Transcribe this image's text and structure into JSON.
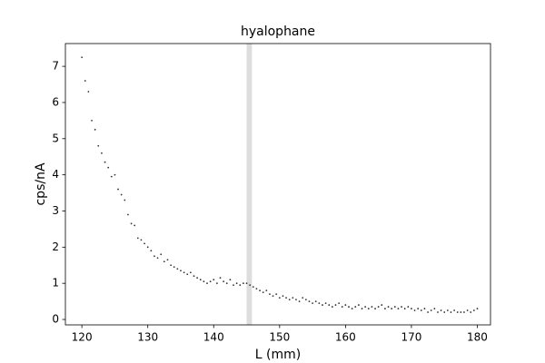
{
  "chart_data": {
    "type": "scatter",
    "title": "hyalophane",
    "x_label": "L (mm)",
    "y_label": "cps/nA",
    "x": [
      120,
      120.5,
      121,
      121.5,
      122,
      122.5,
      123,
      123.5,
      124,
      124.5,
      125,
      125.5,
      126,
      126.5,
      127,
      127.5,
      128,
      128.5,
      129,
      129.5,
      130,
      130.5,
      131,
      131.5,
      132,
      132.5,
      133,
      133.5,
      134,
      134.5,
      135,
      135.5,
      136,
      136.5,
      137,
      137.5,
      138,
      138.5,
      139,
      139.5,
      140,
      140.5,
      141,
      141.5,
      142,
      142.5,
      143,
      143.5,
      144,
      144.5,
      145,
      145.5,
      146,
      146.5,
      147,
      147.5,
      148,
      148.5,
      149,
      149.5,
      150,
      150.5,
      151,
      151.5,
      152,
      152.5,
      153,
      153.5,
      154,
      154.5,
      155,
      155.5,
      156,
      156.5,
      157,
      157.5,
      158,
      158.5,
      159,
      159.5,
      160,
      160.5,
      161,
      161.5,
      162,
      162.5,
      163,
      163.5,
      164,
      164.5,
      165,
      165.5,
      166,
      166.5,
      167,
      167.5,
      168,
      168.5,
      169,
      169.5,
      170,
      170.5,
      171,
      171.5,
      172,
      172.5,
      173,
      173.5,
      174,
      174.5,
      175,
      175.5,
      176,
      176.5,
      177,
      177.5,
      178,
      178.5,
      179,
      179.5,
      180
    ],
    "values": [
      7.25,
      6.6,
      6.3,
      5.5,
      5.25,
      4.8,
      4.6,
      4.35,
      4.2,
      3.95,
      4.0,
      3.6,
      3.45,
      3.3,
      2.9,
      2.65,
      2.6,
      2.25,
      2.2,
      2.1,
      2.0,
      1.9,
      1.75,
      1.7,
      1.8,
      1.6,
      1.65,
      1.5,
      1.45,
      1.4,
      1.35,
      1.3,
      1.25,
      1.3,
      1.2,
      1.15,
      1.1,
      1.05,
      1.0,
      1.05,
      1.1,
      1.0,
      1.15,
      1.05,
      1.0,
      1.1,
      0.95,
      1.0,
      0.95,
      1.0,
      1.0,
      0.95,
      0.9,
      0.85,
      0.8,
      0.75,
      0.8,
      0.7,
      0.65,
      0.7,
      0.6,
      0.65,
      0.6,
      0.55,
      0.6,
      0.55,
      0.5,
      0.6,
      0.55,
      0.5,
      0.45,
      0.5,
      0.45,
      0.4,
      0.45,
      0.4,
      0.35,
      0.4,
      0.45,
      0.35,
      0.4,
      0.35,
      0.3,
      0.35,
      0.4,
      0.3,
      0.35,
      0.3,
      0.35,
      0.3,
      0.35,
      0.4,
      0.3,
      0.35,
      0.3,
      0.35,
      0.3,
      0.35,
      0.3,
      0.35,
      0.3,
      0.25,
      0.3,
      0.25,
      0.3,
      0.2,
      0.25,
      0.3,
      0.2,
      0.25,
      0.2,
      0.25,
      0.2,
      0.25,
      0.2,
      0.2,
      0.2,
      0.25,
      0.2,
      0.25,
      0.3
    ],
    "color": "#333333",
    "highlight_band": [
      145.0,
      145.8
    ],
    "highlight_color": "#dddddd",
    "xlim": [
      117.5,
      182
    ],
    "ylim": [
      -0.15,
      7.63
    ],
    "xticks": [
      120,
      130,
      140,
      150,
      160,
      170,
      180
    ],
    "yticks": [
      0,
      1,
      2,
      3,
      4,
      5,
      6,
      7
    ]
  }
}
